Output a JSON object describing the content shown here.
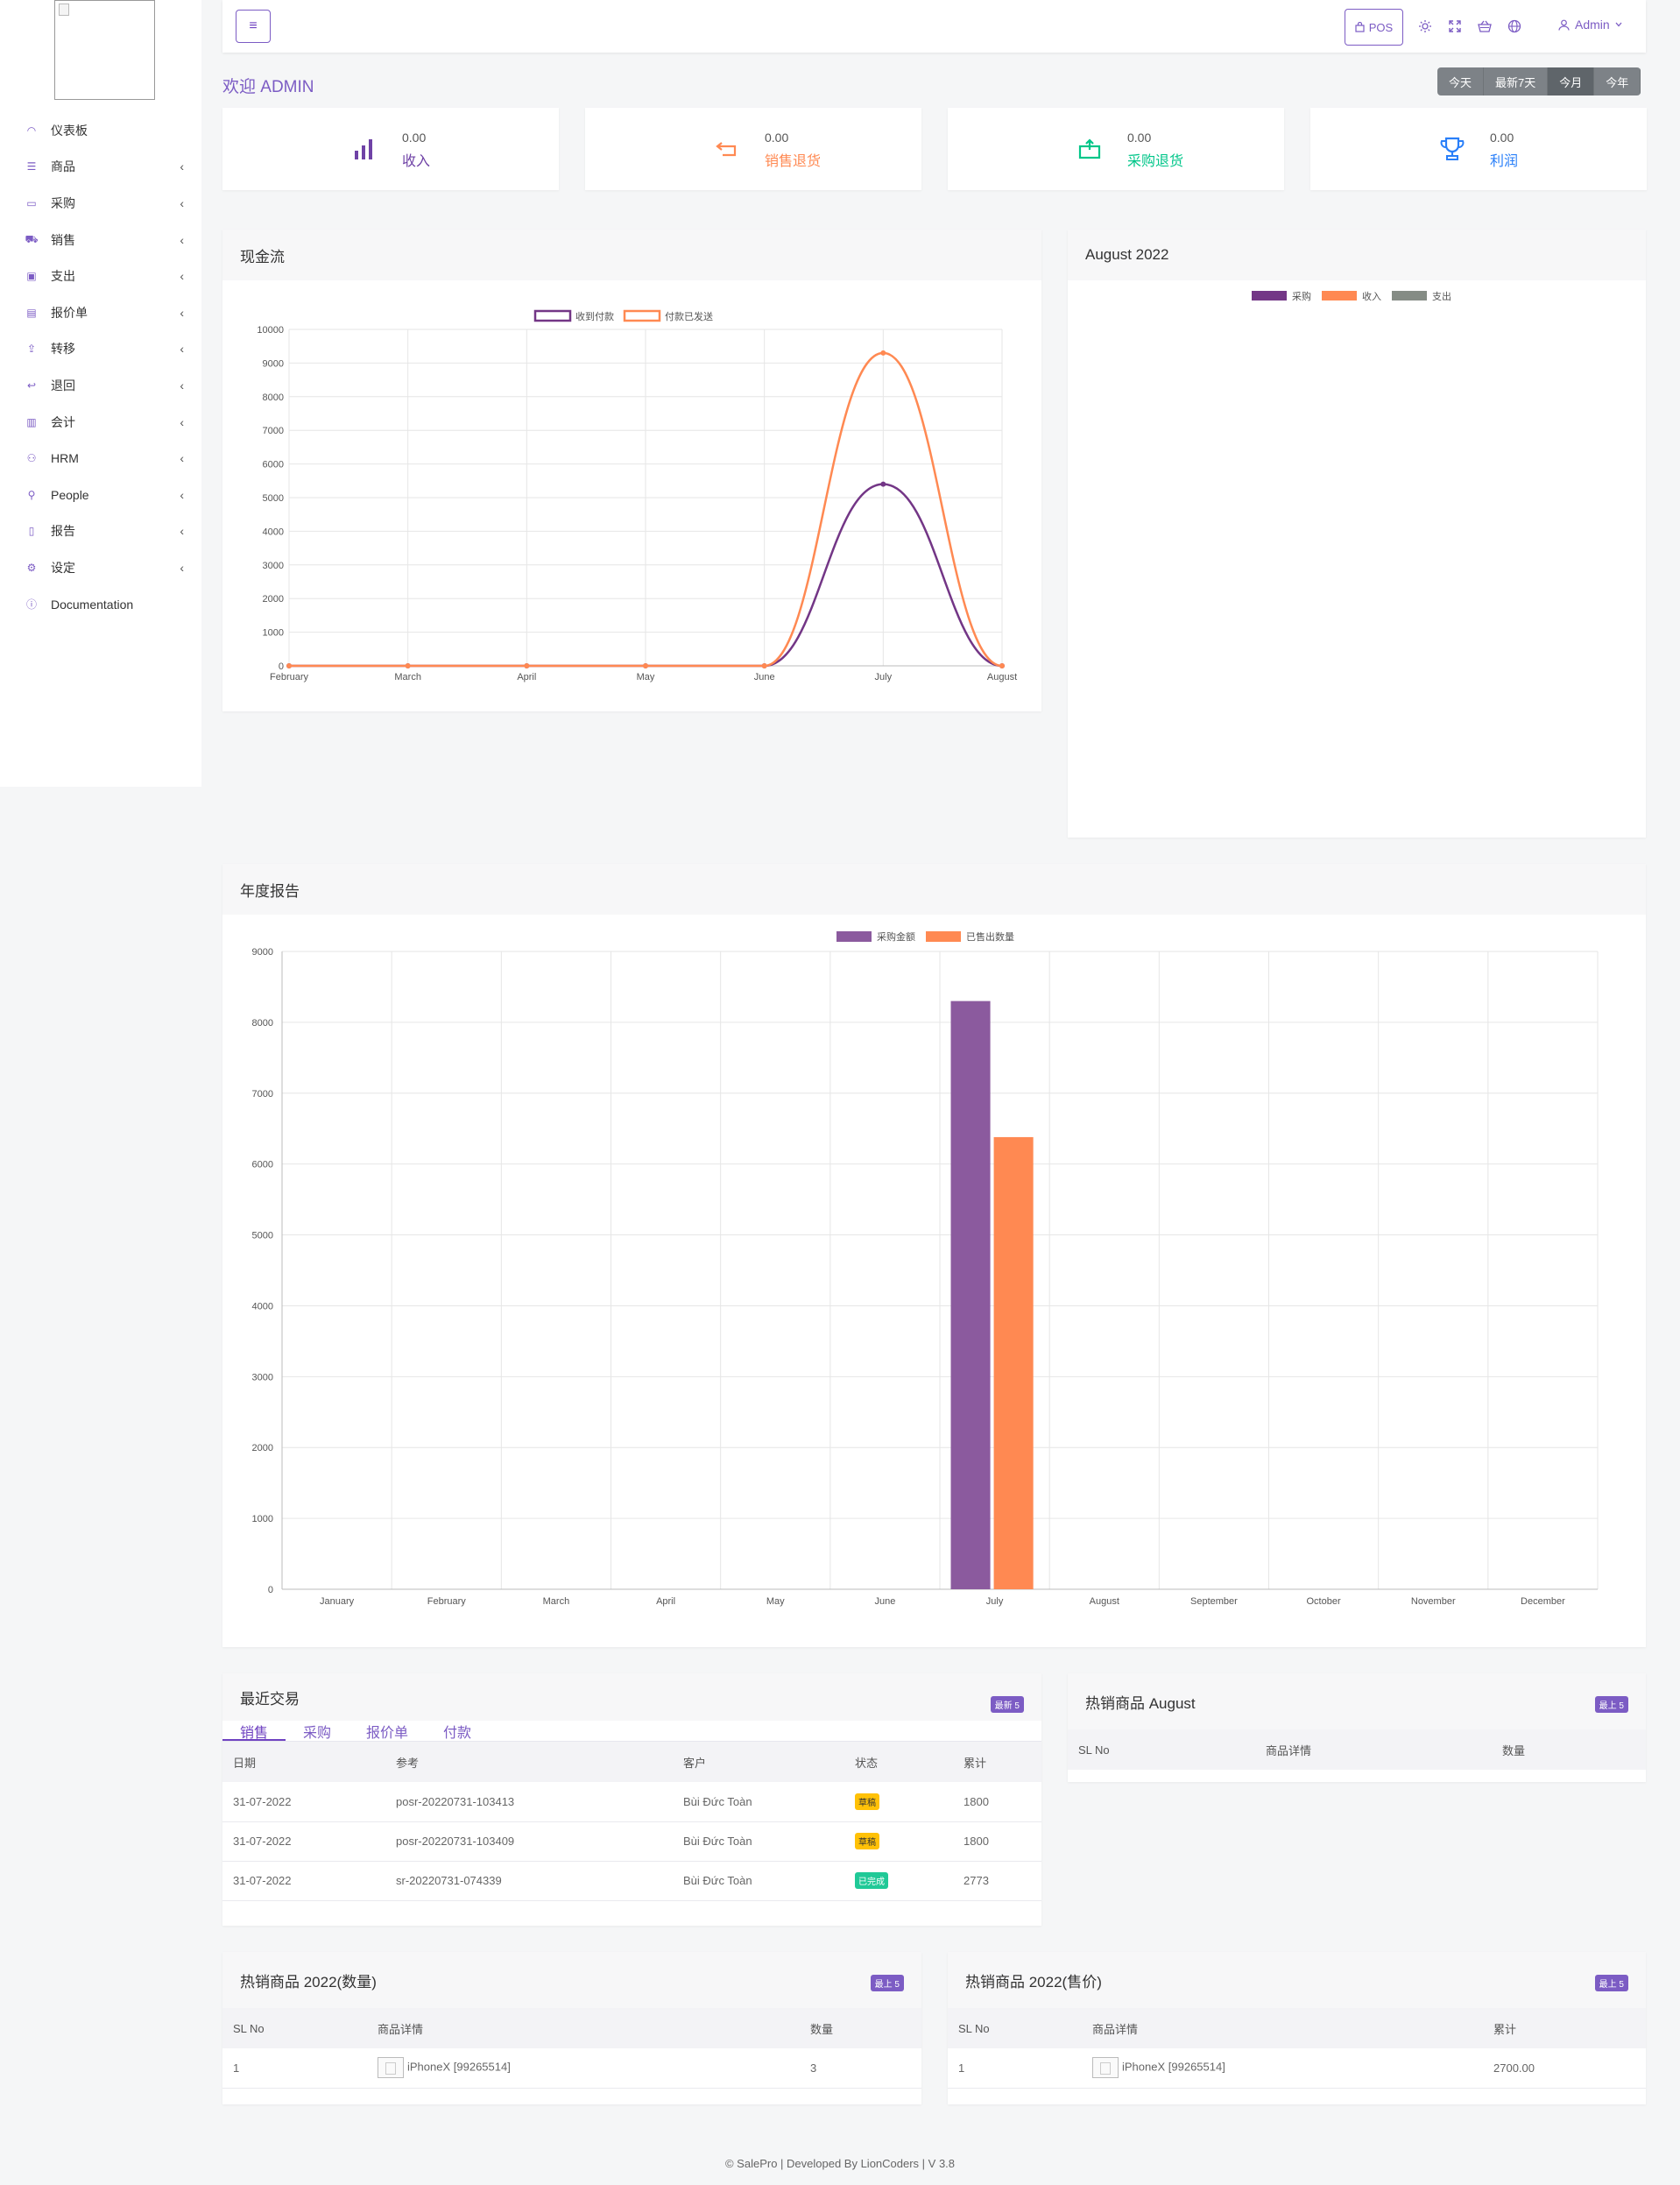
{
  "nav": [
    {
      "icon": "dashboard-icon",
      "glyph": "◠",
      "label": "仪表板",
      "chevron": ""
    },
    {
      "icon": "list-icon",
      "glyph": "☰",
      "label": "商品",
      "chevron": "‹"
    },
    {
      "icon": "card-icon",
      "glyph": "▭",
      "label": "采购",
      "chevron": "‹"
    },
    {
      "icon": "cart-icon",
      "glyph": "⛟",
      "label": "销售",
      "chevron": "‹"
    },
    {
      "icon": "wallet-icon",
      "glyph": "▣",
      "label": "支出",
      "chevron": "‹"
    },
    {
      "icon": "document-icon",
      "glyph": "▤",
      "label": "报价单",
      "chevron": "‹"
    },
    {
      "icon": "share-icon",
      "glyph": "⇪",
      "label": "转移",
      "chevron": "‹"
    },
    {
      "icon": "return-icon",
      "glyph": "↩",
      "label": "退回",
      "chevron": "‹"
    },
    {
      "icon": "briefcase-icon",
      "glyph": "▥",
      "label": "会计",
      "chevron": "‹"
    },
    {
      "icon": "users-icon",
      "glyph": "⚇",
      "label": "HRM",
      "chevron": "‹"
    },
    {
      "icon": "user-icon",
      "glyph": "⚲",
      "label": "People",
      "chevron": "‹"
    },
    {
      "icon": "report-icon",
      "glyph": "▯",
      "label": "报告",
      "chevron": "‹"
    },
    {
      "icon": "gear-icon",
      "glyph": "⚙",
      "label": "设定",
      "chevron": "‹"
    },
    {
      "icon": "info-icon",
      "glyph": "ⓘ",
      "label": "Documentation",
      "chevron": ""
    }
  ],
  "topbar": {
    "menu_glyph": "≡",
    "pos_label": "POS",
    "admin_label": "Admin"
  },
  "welcome": "欢迎 ADMIN",
  "filters": [
    "今天",
    "最新7天",
    "今月",
    "今年"
  ],
  "active_filter": "今月",
  "stats": [
    {
      "icon": "bar-chart-icon",
      "value": "0.00",
      "label": "收入",
      "color": "#6f42a6"
    },
    {
      "icon": "return-arrow-icon",
      "value": "0.00",
      "label": "销售退货",
      "color": "#ff8952"
    },
    {
      "icon": "box-return-icon",
      "value": "0.00",
      "label": "采购退货",
      "color": "#00c689"
    },
    {
      "icon": "trophy-icon",
      "value": "0.00",
      "label": "利润",
      "color": "#297ff9"
    }
  ],
  "cashflow": {
    "title": "现金流",
    "chart_data": {
      "type": "line",
      "categories": [
        "February",
        "March",
        "April",
        "May",
        "June",
        "July",
        "August"
      ],
      "series": [
        {
          "name": "收到付款",
          "color": "#733686",
          "values": [
            0,
            0,
            0,
            0,
            0,
            5400,
            0
          ]
        },
        {
          "name": "付款已发送",
          "color": "#ff8952",
          "values": [
            0,
            0,
            0,
            0,
            0,
            9300,
            0
          ]
        }
      ],
      "yticks": [
        0,
        1000,
        2000,
        3000,
        4000,
        5000,
        6000,
        7000,
        8000,
        9000,
        10000
      ],
      "ylim": [
        0,
        10000
      ]
    }
  },
  "monthly": {
    "title": "August 2022",
    "legend": [
      {
        "name": "采购",
        "color": "#733686"
      },
      {
        "name": "收入",
        "color": "#ff8952"
      },
      {
        "name": "支出",
        "color": "#858c85"
      }
    ]
  },
  "yearly": {
    "title": "年度报告",
    "chart_data": {
      "type": "bar",
      "categories": [
        "January",
        "February",
        "March",
        "April",
        "May",
        "June",
        "July",
        "August",
        "September",
        "October",
        "November",
        "December"
      ],
      "series": [
        {
          "name": "采购金额",
          "color": "#8b5a9e",
          "values": [
            0,
            0,
            0,
            0,
            0,
            0,
            8300,
            0,
            0,
            0,
            0,
            0
          ]
        },
        {
          "name": "已售出数量",
          "color": "#ff8952",
          "values": [
            0,
            0,
            0,
            0,
            0,
            0,
            6380,
            0,
            0,
            0,
            0,
            0
          ]
        }
      ],
      "yticks": [
        0,
        1000,
        2000,
        3000,
        4000,
        5000,
        6000,
        7000,
        8000,
        9000
      ],
      "ylim": [
        0,
        9000
      ]
    }
  },
  "recent": {
    "title": "最近交易",
    "badge": "最新 5",
    "tabs": [
      "销售",
      "采购",
      "报价单",
      "付款"
    ],
    "columns": [
      "日期",
      "参考",
      "客户",
      "状态",
      "累计"
    ],
    "rows": [
      {
        "date": "31-07-2022",
        "ref": "posr-20220731-103413",
        "customer": "Bùi Đức Toàn",
        "status": "草稿",
        "status_kind": "draft",
        "total": "1800"
      },
      {
        "date": "31-07-2022",
        "ref": "posr-20220731-103409",
        "customer": "Bùi Đức Toàn",
        "status": "草稿",
        "status_kind": "draft",
        "total": "1800"
      },
      {
        "date": "31-07-2022",
        "ref": "sr-20220731-074339",
        "customer": "Bùi Đức Toàn",
        "status": "已完成",
        "status_kind": "done",
        "total": "2773"
      }
    ]
  },
  "best_month": {
    "title": "热销商品 August",
    "badge": "最上 5",
    "columns": [
      "SL No",
      "商品详情",
      "数量"
    ]
  },
  "best_qty": {
    "title": "热销商品 2022(数量)",
    "badge": "最上 5",
    "columns": [
      "SL No",
      "商品详情",
      "数量"
    ],
    "rows": [
      {
        "no": "1",
        "product": "iPhoneX [99265514]",
        "value": "3"
      }
    ]
  },
  "best_price": {
    "title": "热销商品 2022(售价)",
    "badge": "最上 5",
    "columns": [
      "SL No",
      "商品详情",
      "累计"
    ],
    "rows": [
      {
        "no": "1",
        "product": "iPhoneX [99265514]",
        "value": "2700.00"
      }
    ]
  },
  "footer": "© SalePro | Developed By LionCoders | V 3.8"
}
